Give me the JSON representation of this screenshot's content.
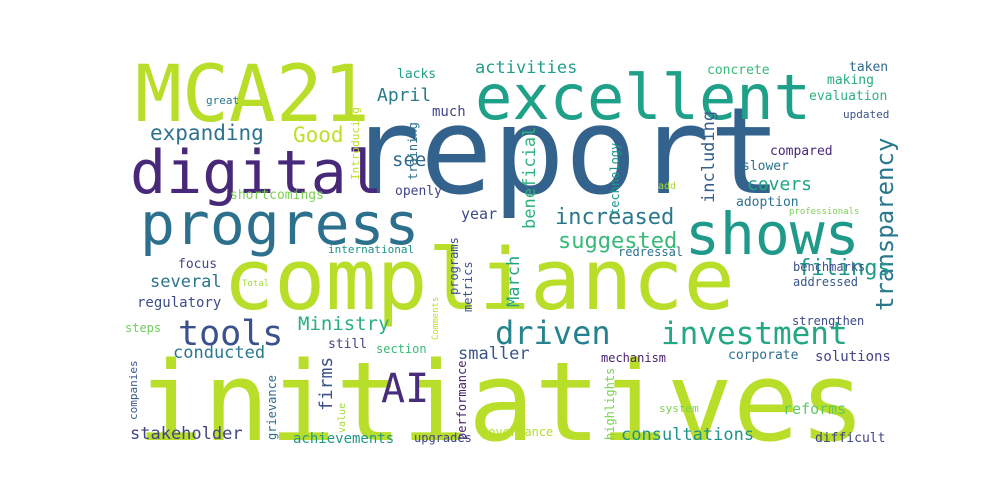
{
  "words": [
    {
      "text": "report",
      "color": "#33638d"
    },
    {
      "text": "initiatives",
      "color": "#b8de29"
    },
    {
      "text": "compliance",
      "color": "#b8de29"
    },
    {
      "text": "MCA21",
      "color": "#b8de29"
    },
    {
      "text": "excellent",
      "color": "#1fa088"
    },
    {
      "text": "digital",
      "color": "#482979"
    },
    {
      "text": "progress",
      "color": "#2d708e"
    },
    {
      "text": "shows",
      "color": "#1f9a8a"
    },
    {
      "text": "investment",
      "color": "#22a884"
    },
    {
      "text": "tools",
      "color": "#3b518b"
    },
    {
      "text": "driven",
      "color": "#26828e"
    },
    {
      "text": "AI",
      "color": "#472d7b"
    },
    {
      "text": "transparency",
      "color": "#2a788e"
    },
    {
      "text": "increased",
      "color": "#2a788e"
    },
    {
      "text": "suggested",
      "color": "#38b977"
    },
    {
      "text": "expanding",
      "color": "#2c728e"
    },
    {
      "text": "Good",
      "color": "#bddf26"
    },
    {
      "text": "activities",
      "color": "#1f9e89"
    },
    {
      "text": "April",
      "color": "#2a7b8e"
    },
    {
      "text": "see",
      "color": "#31688e"
    },
    {
      "text": "covers",
      "color": "#21a585"
    },
    {
      "text": "filings",
      "color": "#1f9a8a"
    },
    {
      "text": "beneficial",
      "color": "#2db27d"
    },
    {
      "text": "including",
      "color": "#355f8d"
    },
    {
      "text": "year",
      "color": "#3e4989"
    },
    {
      "text": "Ministry",
      "color": "#29af7f"
    },
    {
      "text": "March",
      "color": "#22a785"
    },
    {
      "text": "firms",
      "color": "#3b528b"
    },
    {
      "text": "several",
      "color": "#2c738e"
    },
    {
      "text": "focus",
      "color": "#3f4788"
    },
    {
      "text": "regulatory",
      "color": "#3e4c8a"
    },
    {
      "text": "conducted",
      "color": "#2a788e"
    },
    {
      "text": "smaller",
      "color": "#39568c"
    },
    {
      "text": "stakeholder",
      "color": "#414487"
    },
    {
      "text": "achievements",
      "color": "#1f988b"
    },
    {
      "text": "consultations",
      "color": "#20928c"
    },
    {
      "text": "reforms",
      "color": "#5ec962"
    },
    {
      "text": "difficult",
      "color": "#414487"
    },
    {
      "text": "solutions",
      "color": "#404688"
    },
    {
      "text": "strengthen",
      "color": "#3e4a89"
    },
    {
      "text": "corporate",
      "color": "#2e6e8e"
    },
    {
      "text": "mechanism",
      "color": "#481f70"
    },
    {
      "text": "addressed",
      "color": "#38588c"
    },
    {
      "text": "benchmarks",
      "color": "#3b518b"
    },
    {
      "text": "redressal",
      "color": "#2c728e"
    },
    {
      "text": "adoption",
      "color": "#2c728e"
    },
    {
      "text": "slower",
      "color": "#2c728e"
    },
    {
      "text": "compared",
      "color": "#482878"
    },
    {
      "text": "concrete",
      "color": "#38b977"
    },
    {
      "text": "making",
      "color": "#25ac82"
    },
    {
      "text": "taken",
      "color": "#31688e"
    },
    {
      "text": "evaluation",
      "color": "#2db27d"
    },
    {
      "text": "updated",
      "color": "#3b528b"
    },
    {
      "text": "lacks",
      "color": "#1fa088"
    },
    {
      "text": "great",
      "color": "#2a788e"
    },
    {
      "text": "much",
      "color": "#404688"
    },
    {
      "text": "openly",
      "color": "#3f4788"
    },
    {
      "text": "shortcomings",
      "color": "#7ad151"
    },
    {
      "text": "international",
      "color": "#20928c"
    },
    {
      "text": "Introducing",
      "color": "#c2df23"
    },
    {
      "text": "training",
      "color": "#2d708e"
    },
    {
      "text": "technology",
      "color": "#1f968b"
    },
    {
      "text": "add",
      "color": "#a5db36"
    },
    {
      "text": "professionals",
      "color": "#7ad151"
    },
    {
      "text": "Total",
      "color": "#a0da39"
    },
    {
      "text": "Comments",
      "color": "#bddf26"
    },
    {
      "text": "programs",
      "color": "#3b528b"
    },
    {
      "text": "metrics",
      "color": "#3b528b"
    },
    {
      "text": "steps",
      "color": "#6ccd5a"
    },
    {
      "text": "still",
      "color": "#414487"
    },
    {
      "text": "section",
      "color": "#38b977"
    },
    {
      "text": "performance",
      "color": "#481d6f"
    },
    {
      "text": "highlights",
      "color": "#7ad151"
    },
    {
      "text": "system",
      "color": "#7ad151"
    },
    {
      "text": "governance",
      "color": "#b5de2b"
    },
    {
      "text": "upgrades",
      "color": "#414487"
    },
    {
      "text": "value",
      "color": "#a5db36"
    },
    {
      "text": "grievance",
      "color": "#2e6e8e"
    },
    {
      "text": "companies",
      "color": "#38588c"
    }
  ]
}
